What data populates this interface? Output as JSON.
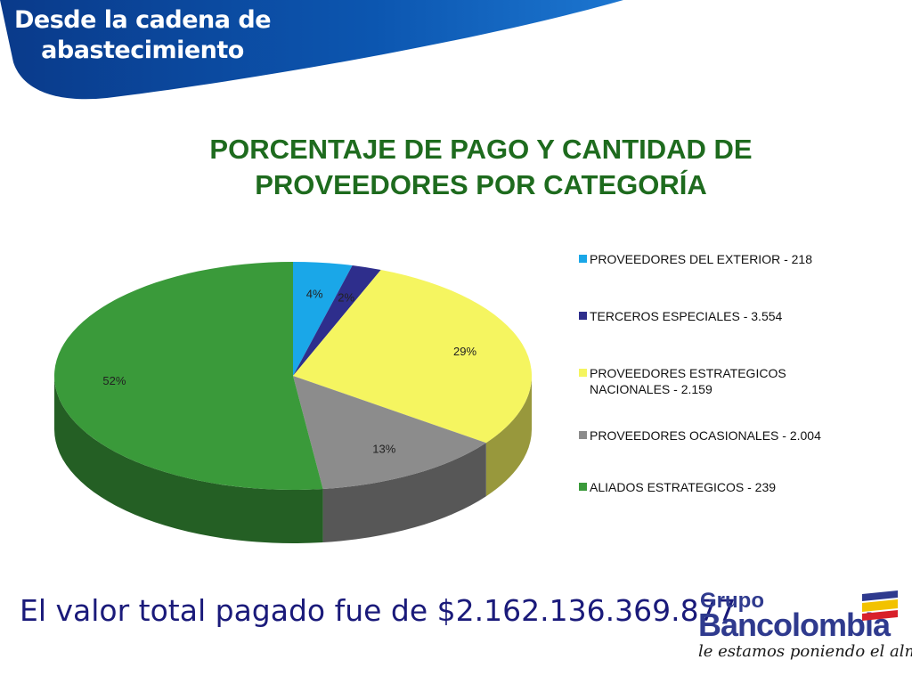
{
  "header": {
    "title": "Desde la cadena de abastecimiento"
  },
  "chart_data": {
    "type": "pie",
    "title": "PORCENTAJE DE PAGO Y CANTIDAD DE PROVEEDORES POR CATEGORÍA",
    "labels": [
      "PROVEEDORES DEL EXTERIOR - 218",
      "TERCEROS ESPECIALES - 3.554",
      "PROVEEDORES ESTRATEGICOS NACIONALES - 2.159",
      "PROVEEDORES OCASIONALES - 2.004",
      "ALIADOS ESTRATEGICOS - 239"
    ],
    "values": [
      4,
      2,
      29,
      13,
      52
    ],
    "value_labels": [
      "4%",
      "2%",
      "29%",
      "13%",
      "52%"
    ],
    "colors": [
      "#1aa7e8",
      "#2e2e8c",
      "#f5f560",
      "#8c8c8c",
      "#3a9a3a"
    ],
    "legend_position": "right",
    "style": "3d"
  },
  "footer": {
    "total_text": "El valor total pagado fue de $2.162.136.369.877"
  },
  "logo": {
    "grupo": "Grupo",
    "brand": "Bancolombia",
    "tagline": "le estamos poniendo el alma"
  }
}
